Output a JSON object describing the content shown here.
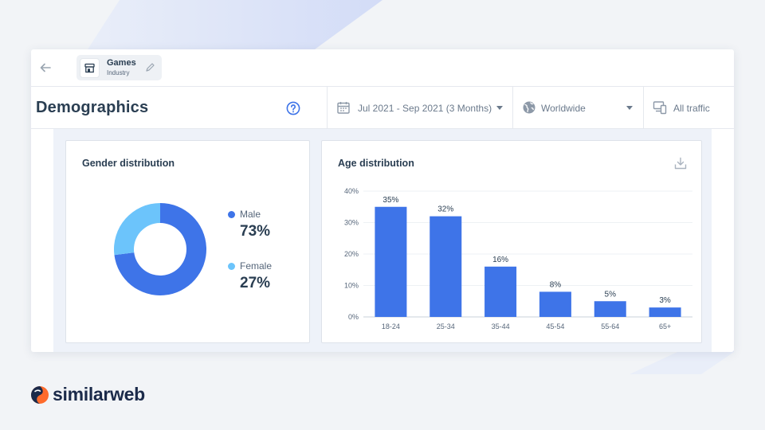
{
  "topbar": {
    "chip": {
      "title": "Games",
      "subtitle": "Industry",
      "icon": "storefront-icon"
    }
  },
  "header": {
    "title": "Demographics",
    "date_range": "Jul 2021 - Sep 2021 (3 Months)",
    "country": "Worldwide",
    "traffic": "All traffic"
  },
  "gender": {
    "title": "Gender distribution",
    "items": [
      {
        "label": "Male",
        "value": "73%",
        "share": 0.73,
        "color": "#3e74e8"
      },
      {
        "label": "Female",
        "value": "27%",
        "share": 0.27,
        "color": "#6cc4fb"
      }
    ]
  },
  "age": {
    "title": "Age distribution"
  },
  "chart_data": {
    "type": "bar",
    "title": "Age distribution",
    "categories": [
      "18-24",
      "25-34",
      "35-44",
      "45-54",
      "55-64",
      "65+"
    ],
    "values": [
      35,
      32,
      16,
      8,
      5,
      3
    ],
    "value_labels": [
      "35%",
      "32%",
      "16%",
      "8%",
      "5%",
      "3%"
    ],
    "ylim": [
      0,
      40
    ],
    "yticks": [
      0,
      10,
      20,
      30,
      40
    ],
    "ytick_labels": [
      "0%",
      "10%",
      "20%",
      "30%",
      "40%"
    ],
    "grid": true,
    "color": "#3e74e8"
  },
  "brand": {
    "name": "similarweb"
  }
}
